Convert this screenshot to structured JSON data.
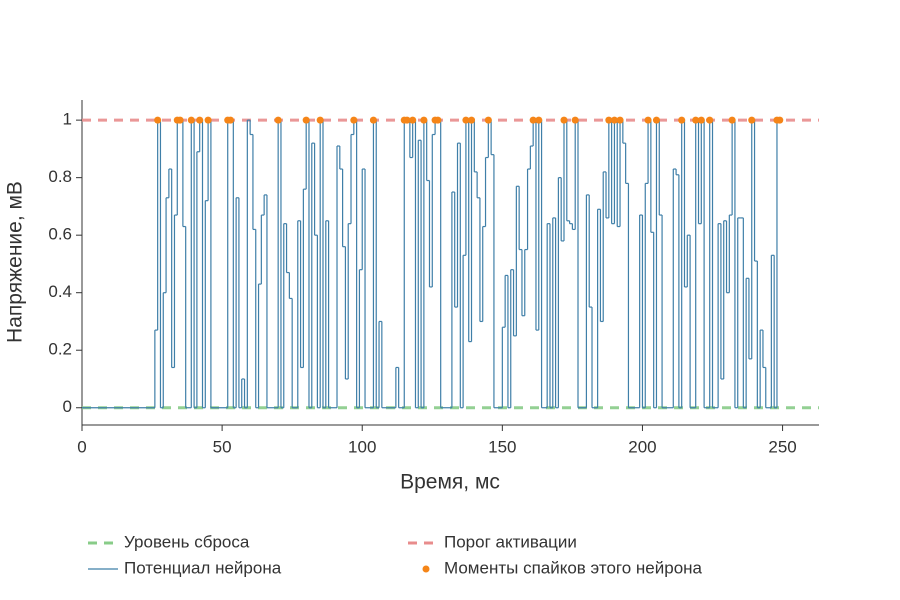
{
  "chart_data": {
    "type": "line",
    "xlabel": "Время, мс",
    "ylabel": "Напряжение, мВ",
    "xlim": [
      0,
      263
    ],
    "ylim": [
      -0.06,
      1.07
    ],
    "xticks": [
      0,
      50,
      100,
      150,
      200,
      250
    ],
    "yticks": [
      0,
      0.2,
      0.4,
      0.6,
      0.8,
      1
    ],
    "legend": "bottom",
    "series": [
      {
        "name": "Уровень сброса",
        "kind": "hline",
        "style": "dashed",
        "color": "#88cc88",
        "y": 0
      },
      {
        "name": "Порог активации",
        "kind": "hline",
        "style": "dashed",
        "color": "#e88c8c",
        "y": 1
      },
      {
        "name": "Потенциал нейрона",
        "kind": "step",
        "color": "#3f7fa8",
        "x": [
          0,
          26,
          27,
          28,
          29,
          30,
          31,
          32,
          33,
          34,
          35,
          36,
          37,
          39,
          40,
          41,
          42,
          43,
          44,
          45,
          46,
          52,
          53,
          54,
          55,
          56,
          57,
          58,
          59,
          60,
          61,
          62,
          63,
          64,
          65,
          66,
          70,
          71,
          72,
          73,
          74,
          75,
          77,
          78,
          79,
          80,
          81,
          82,
          83,
          84,
          85,
          86,
          87,
          88,
          91,
          92,
          93,
          94,
          95,
          96,
          97,
          98,
          99,
          100,
          101,
          104,
          105,
          106,
          107,
          112,
          113,
          115,
          116,
          117,
          118,
          119,
          120,
          121,
          122,
          123,
          124,
          125,
          126,
          127,
          128,
          132,
          133,
          134,
          135,
          136,
          137,
          138,
          139,
          140,
          141,
          142,
          143,
          144,
          145,
          146,
          147,
          150,
          151,
          152,
          153,
          154,
          155,
          156,
          157,
          158,
          159,
          160,
          161,
          162,
          163,
          164,
          166,
          167,
          168,
          169,
          170,
          171,
          172,
          173,
          174,
          175,
          176,
          177,
          180,
          181,
          182,
          184,
          185,
          186,
          187,
          188,
          189,
          190,
          191,
          192,
          193,
          194,
          195,
          199,
          200,
          201,
          202,
          203,
          204,
          205,
          206,
          207,
          211,
          212,
          213,
          214,
          215,
          216,
          217,
          219,
          220,
          221,
          222,
          224,
          225,
          227,
          228,
          229,
          230,
          231,
          232,
          233,
          234,
          235,
          236,
          237,
          238,
          239,
          240,
          241,
          242,
          243,
          244,
          246,
          247,
          248,
          249
        ],
        "values": [
          0,
          0.27,
          1,
          0,
          0.4,
          0.73,
          0.83,
          0.14,
          0.67,
          1,
          1,
          0.63,
          0,
          1,
          0,
          0.89,
          1,
          0,
          0.72,
          1,
          0,
          1,
          1,
          0,
          0.73,
          0,
          0.1,
          0,
          1,
          0.95,
          0.62,
          0,
          0.43,
          0.67,
          0.74,
          0,
          1,
          0,
          0.64,
          0.47,
          0.38,
          0,
          0.65,
          0.14,
          0.76,
          1,
          0,
          0.92,
          0.6,
          0,
          1,
          0,
          0.65,
          0,
          0.91,
          0.83,
          0.56,
          0.1,
          0.64,
          0.95,
          1,
          0,
          0.48,
          0.83,
          0,
          1,
          0,
          0.3,
          0,
          0.14,
          0,
          1,
          1,
          0.87,
          1,
          0,
          0.93,
          0,
          1,
          0.79,
          0.42,
          0.95,
          1,
          1,
          0,
          0.75,
          0.35,
          0.92,
          0,
          0.53,
          1,
          0.23,
          1,
          0.82,
          0.73,
          0.3,
          0.63,
          0.87,
          1,
          0.88,
          0,
          0.28,
          0.46,
          0,
          0.48,
          0.25,
          0.77,
          0.55,
          0.32,
          0.55,
          0.83,
          0.91,
          1,
          0.27,
          1,
          0,
          0.64,
          0,
          0.66,
          0,
          0.8,
          0.58,
          1,
          0.65,
          0.64,
          0.62,
          1,
          0,
          0.74,
          0.35,
          0,
          0.69,
          0.3,
          0.82,
          0.66,
          1,
          0.64,
          1,
          0.63,
          1,
          0.92,
          0.78,
          0,
          0.67,
          0,
          0.78,
          1,
          0.61,
          0,
          1,
          0.67,
          0,
          0.83,
          0.81,
          0,
          1,
          0.42,
          0.6,
          0,
          1,
          0.64,
          1,
          0,
          1,
          0,
          0.64,
          0.1,
          0.65,
          0.4,
          0.67,
          1,
          0,
          0.66,
          0.66,
          0,
          0.45,
          0.17,
          1,
          0.51,
          0,
          0.27,
          0.14,
          0,
          0.53,
          0,
          1,
          1
        ]
      },
      {
        "name": "Моменты спайков этого нейрона",
        "kind": "scatter",
        "color": "#f58518",
        "x": [
          27,
          34,
          35,
          39,
          42,
          45,
          52,
          53,
          70,
          80,
          85,
          97,
          104,
          115,
          116,
          118,
          122,
          126,
          127,
          137,
          139,
          145,
          161,
          163,
          172,
          176,
          188,
          190,
          192,
          202,
          205,
          214,
          219,
          221,
          224,
          232,
          239,
          248,
          249
        ],
        "values": [
          1,
          1,
          1,
          1,
          1,
          1,
          1,
          1,
          1,
          1,
          1,
          1,
          1,
          1,
          1,
          1,
          1,
          1,
          1,
          1,
          1,
          1,
          1,
          1,
          1,
          1,
          1,
          1,
          1,
          1,
          1,
          1,
          1,
          1,
          1,
          1,
          1,
          1,
          1
        ]
      }
    ]
  }
}
